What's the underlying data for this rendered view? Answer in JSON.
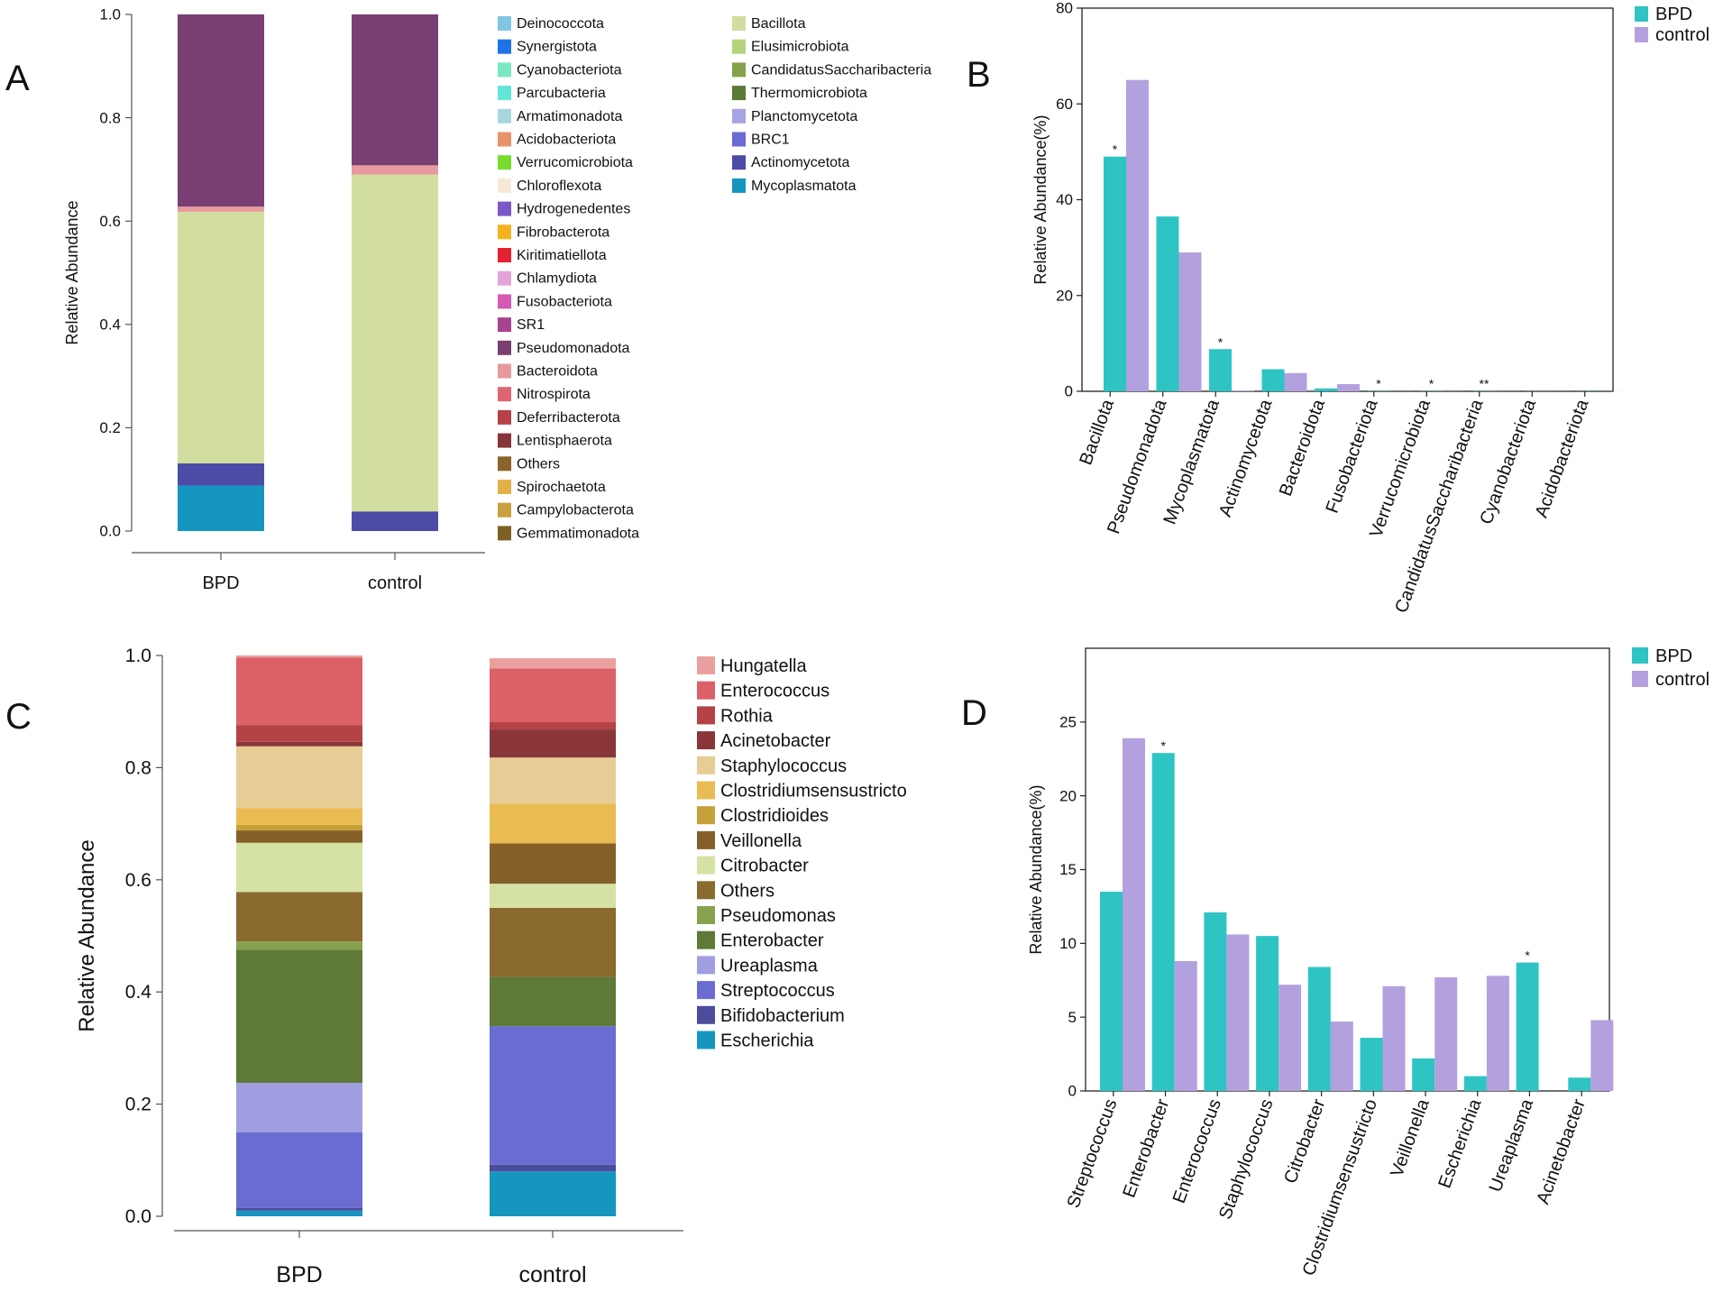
{
  "panels": {
    "A": "A",
    "B": "B",
    "C": "C",
    "D": "D"
  },
  "chart_data": [
    {
      "id": "A",
      "type": "bar",
      "stacked": true,
      "ylabel": "Relative Abundance",
      "ylim": [
        0,
        1
      ],
      "yticks": [
        "0.0",
        "0.2",
        "0.4",
        "0.6",
        "0.8",
        "1.0"
      ],
      "categories": [
        "BPD",
        "control"
      ],
      "segments": [
        {
          "name": "Mycoplasmatota",
          "color": "#1596be",
          "values": [
            0.088,
            0.0
          ]
        },
        {
          "name": "Actinomycetota",
          "color": "#4c4ca6",
          "values": [
            0.043,
            0.038
          ]
        },
        {
          "name": "Bacillota",
          "color": "#d1de9f",
          "values": [
            0.487,
            0.652
          ]
        },
        {
          "name": "Bacteroidota",
          "color": "#e69a9e",
          "values": [
            0.01,
            0.018
          ]
        },
        {
          "name": "Pseudomonadota",
          "color": "#793e72",
          "values": [
            0.372,
            0.292
          ]
        }
      ],
      "legend": [
        {
          "name": "Deinococcota",
          "color": "#7fc6e4"
        },
        {
          "name": "Synergistota",
          "color": "#1e74e6"
        },
        {
          "name": "Cyanobacteriota",
          "color": "#7ae8c3"
        },
        {
          "name": "Parcubacteria",
          "color": "#63e6d8"
        },
        {
          "name": "Armatimonadota",
          "color": "#a7d6dc"
        },
        {
          "name": "Acidobacteriota",
          "color": "#e8936a"
        },
        {
          "name": "Verrucomicrobiota",
          "color": "#78dc2e"
        },
        {
          "name": "Chloroflexota",
          "color": "#f8e8d8"
        },
        {
          "name": "Hydrogenedentes",
          "color": "#7b58c8"
        },
        {
          "name": "Fibrobacterota",
          "color": "#f4b21c"
        },
        {
          "name": "Kiritimatiellota",
          "color": "#e42232"
        },
        {
          "name": "Chlamydiota",
          "color": "#e4a4d8"
        },
        {
          "name": "Fusobacteriota",
          "color": "#d45ab4"
        },
        {
          "name": "SR1",
          "color": "#a8448e"
        },
        {
          "name": "Pseudomonadota",
          "color": "#793e72"
        },
        {
          "name": "Bacteroidota",
          "color": "#e69a9e"
        },
        {
          "name": "Nitrospirota",
          "color": "#de6474"
        },
        {
          "name": "Deferribacterota",
          "color": "#b44246"
        },
        {
          "name": "Lentisphaerota",
          "color": "#86343a"
        },
        {
          "name": "Others",
          "color": "#8a6428"
        },
        {
          "name": "Spirochaetota",
          "color": "#e4b04a"
        },
        {
          "name": "Campylobacterota",
          "color": "#c8a03e"
        },
        {
          "name": "Gemmatimonadota",
          "color": "#7e6022"
        },
        {
          "name": "Bacillota",
          "color": "#d1de9f"
        },
        {
          "name": "Elusimicrobiota",
          "color": "#b5d27c"
        },
        {
          "name": "CandidatusSaccharibacteria",
          "color": "#83a24a"
        },
        {
          "name": "Thermomicrobiota",
          "color": "#5a7a36"
        },
        {
          "name": "Planctomycetota",
          "color": "#a6a4e2"
        },
        {
          "name": "BRC1",
          "color": "#6b6bd4"
        },
        {
          "name": "Actinomycetota",
          "color": "#4c4ca6"
        },
        {
          "name": "Mycoplasmatota",
          "color": "#1596be"
        }
      ]
    },
    {
      "id": "B",
      "type": "bar",
      "ylabel": "Relative Abundance(%)",
      "ylim": [
        0,
        80
      ],
      "yticks": [
        "0",
        "20",
        "40",
        "60",
        "80"
      ],
      "categories": [
        "Bacillota",
        "Pseudomonadota",
        "Mycoplasmatota",
        "Actinomycetota",
        "Bacteroidota",
        "Fusobacteriota",
        "Verrucomicrobiota",
        "CandidatusSaccharibacteria",
        "Cyanobacteriota",
        "Acidobacteriota"
      ],
      "series": [
        {
          "name": "BPD",
          "color": "#2ec4c4",
          "values": [
            49,
            36.5,
            8.8,
            4.6,
            0.6,
            0.05,
            0.05,
            0.05,
            0.03,
            0.02
          ]
        },
        {
          "name": "control",
          "color": "#b3a0de",
          "values": [
            65,
            29,
            0.1,
            3.8,
            1.5,
            0.02,
            0.02,
            0.02,
            0.02,
            0.02
          ]
        }
      ],
      "significance": [
        "*",
        "",
        "*",
        "",
        "",
        "*",
        "*",
        "**",
        "",
        ""
      ]
    },
    {
      "id": "C",
      "type": "bar",
      "stacked": true,
      "ylabel": "Relative Abundance",
      "ylim": [
        0,
        1
      ],
      "yticks": [
        "0.0",
        "0.2",
        "0.4",
        "0.6",
        "0.8",
        "1.0"
      ],
      "categories": [
        "BPD",
        "control"
      ],
      "segments": [
        {
          "name": "Escherichia",
          "color": "#1596be",
          "values": [
            0.01,
            0.08
          ]
        },
        {
          "name": "Bifidobacterium",
          "color": "#4c4c9c",
          "values": [
            0.005,
            0.012
          ]
        },
        {
          "name": "Streptococcus",
          "color": "#6a6cd2",
          "values": [
            0.135,
            0.247
          ]
        },
        {
          "name": "Ureaplasma",
          "color": "#a09ee0",
          "values": [
            0.088,
            0.0
          ]
        },
        {
          "name": "Enterobacter",
          "color": "#5e7a36",
          "values": [
            0.237,
            0.088
          ]
        },
        {
          "name": "Pseudomonas",
          "color": "#86a24e",
          "values": [
            0.015,
            0.0
          ]
        },
        {
          "name": "Others",
          "color": "#8a6a2e",
          "values": [
            0.088,
            0.123
          ]
        },
        {
          "name": "Citrobacter",
          "color": "#d4e2a4",
          "values": [
            0.088,
            0.043
          ]
        },
        {
          "name": "Veillonella",
          "color": "#846028",
          "values": [
            0.022,
            0.072
          ]
        },
        {
          "name": "Clostridioides",
          "color": "#c6a038",
          "values": [
            0.01,
            0.0
          ]
        },
        {
          "name": "Clostridiumsensustricto",
          "color": "#e8bc52",
          "values": [
            0.03,
            0.071
          ]
        },
        {
          "name": "Staphylococcus",
          "color": "#e8cc96",
          "values": [
            0.11,
            0.082
          ]
        },
        {
          "name": "Acinetobacter",
          "color": "#8a3638",
          "values": [
            0.008,
            0.05
          ]
        },
        {
          "name": "Rothia",
          "color": "#b44246",
          "values": [
            0.03,
            0.013
          ]
        },
        {
          "name": "Enterococcus",
          "color": "#dc6068",
          "values": [
            0.12,
            0.096
          ]
        },
        {
          "name": "Hungatella",
          "color": "#eba0a0",
          "values": [
            0.004,
            0.018
          ]
        }
      ],
      "legend": [
        {
          "name": "Hungatella",
          "color": "#eba0a0"
        },
        {
          "name": "Enterococcus",
          "color": "#dc6068"
        },
        {
          "name": "Rothia",
          "color": "#b44246"
        },
        {
          "name": "Acinetobacter",
          "color": "#8a3638"
        },
        {
          "name": "Staphylococcus",
          "color": "#e8cc96"
        },
        {
          "name": "Clostridiumsensustricto",
          "color": "#e8bc52"
        },
        {
          "name": "Clostridioides",
          "color": "#c6a038"
        },
        {
          "name": "Veillonella",
          "color": "#846028"
        },
        {
          "name": "Citrobacter",
          "color": "#d4e2a4"
        },
        {
          "name": "Others",
          "color": "#8a6a2e"
        },
        {
          "name": "Pseudomonas",
          "color": "#86a24e"
        },
        {
          "name": "Enterobacter",
          "color": "#5e7a36"
        },
        {
          "name": "Ureaplasma",
          "color": "#a09ee0"
        },
        {
          "name": "Streptococcus",
          "color": "#6a6cd2"
        },
        {
          "name": "Bifidobacterium",
          "color": "#4c4c9c"
        },
        {
          "name": "Escherichia",
          "color": "#1596be"
        }
      ]
    },
    {
      "id": "D",
      "type": "bar",
      "ylabel": "Relative Abundance(%)",
      "ylim": [
        0,
        30
      ],
      "yticks": [
        "0",
        "5",
        "10",
        "15",
        "20",
        "25"
      ],
      "categories": [
        "Streptococcus",
        "Enterobacter",
        "Enterococcus",
        "Staphylococcus",
        "Citrobacter",
        "Clostridiumsensustricto",
        "Veillonella",
        "Escherichia",
        "Ureaplasma",
        "Acinetobacter"
      ],
      "series": [
        {
          "name": "BPD",
          "color": "#2ec4c4",
          "values": [
            13.5,
            22.9,
            12.1,
            10.5,
            8.4,
            3.6,
            2.2,
            1.0,
            8.7,
            0.9
          ]
        },
        {
          "name": "control",
          "color": "#b3a0de",
          "values": [
            23.9,
            8.8,
            10.6,
            7.2,
            4.7,
            7.1,
            7.7,
            7.8,
            0.0,
            4.8
          ]
        }
      ],
      "significance": [
        "",
        "*",
        "",
        "",
        "",
        "",
        "",
        "",
        "*",
        ""
      ]
    }
  ]
}
